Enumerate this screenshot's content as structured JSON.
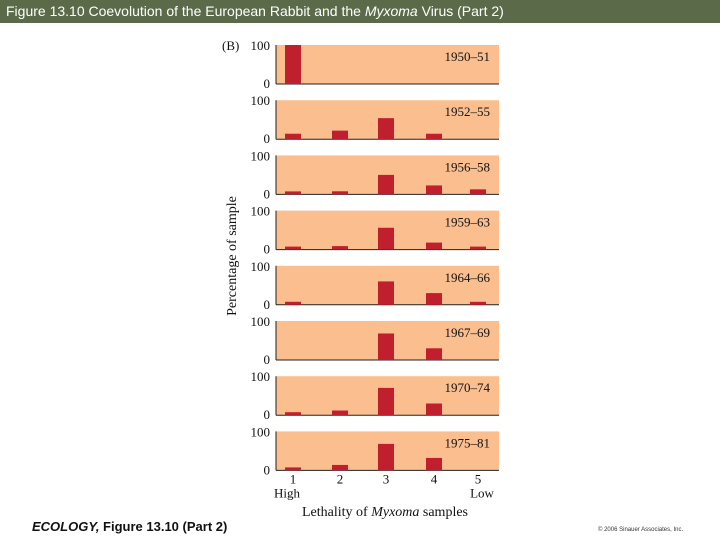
{
  "header": {
    "title_prefix": "Figure 13.10  Coevolution of the European Rabbit and the ",
    "title_italic": "Myxoma",
    "title_suffix": " Virus (Part 2)"
  },
  "footer": {
    "book": "ECOLOGY,",
    "figure": " Figure 13.10 (Part 2)",
    "copyright": "© 2006 Sinauer Associates, Inc."
  },
  "colors": {
    "title_bg": "#5b6b4a",
    "panel_bg": "#fbbf8f",
    "bar": "#c0202e",
    "axis": "#222222"
  },
  "chart_data": {
    "type": "bar",
    "panel_label": "(B)",
    "ylabel": "Percentage of sample",
    "xlabel_prefix": "Lethality of ",
    "xlabel_italic": "Myxoma",
    "xlabel_suffix": " samples",
    "categories": [
      "1",
      "2",
      "3",
      "4",
      "5"
    ],
    "category_sublabels": {
      "first": "High",
      "last": "Low"
    },
    "ylim": [
      0,
      100
    ],
    "ytick_labels": [
      "100",
      "0"
    ],
    "series": [
      {
        "name": "1950–51",
        "values": [
          100,
          0,
          0,
          0,
          0
        ]
      },
      {
        "name": "1952–55",
        "values": [
          14,
          22,
          54,
          14,
          0
        ]
      },
      {
        "name": "1956–58",
        "values": [
          6,
          8,
          50,
          23,
          13
        ]
      },
      {
        "name": "1959–63",
        "values": [
          5,
          9,
          56,
          18,
          4
        ]
      },
      {
        "name": "1964–66",
        "values": [
          4,
          0,
          60,
          30,
          4
        ]
      },
      {
        "name": "1967–69",
        "values": [
          0,
          0,
          68,
          30,
          0
        ]
      },
      {
        "name": "1970–74",
        "values": [
          7,
          12,
          70,
          30,
          0
        ]
      },
      {
        "name": "1975–81",
        "values": [
          6,
          14,
          68,
          32,
          0
        ]
      }
    ]
  }
}
